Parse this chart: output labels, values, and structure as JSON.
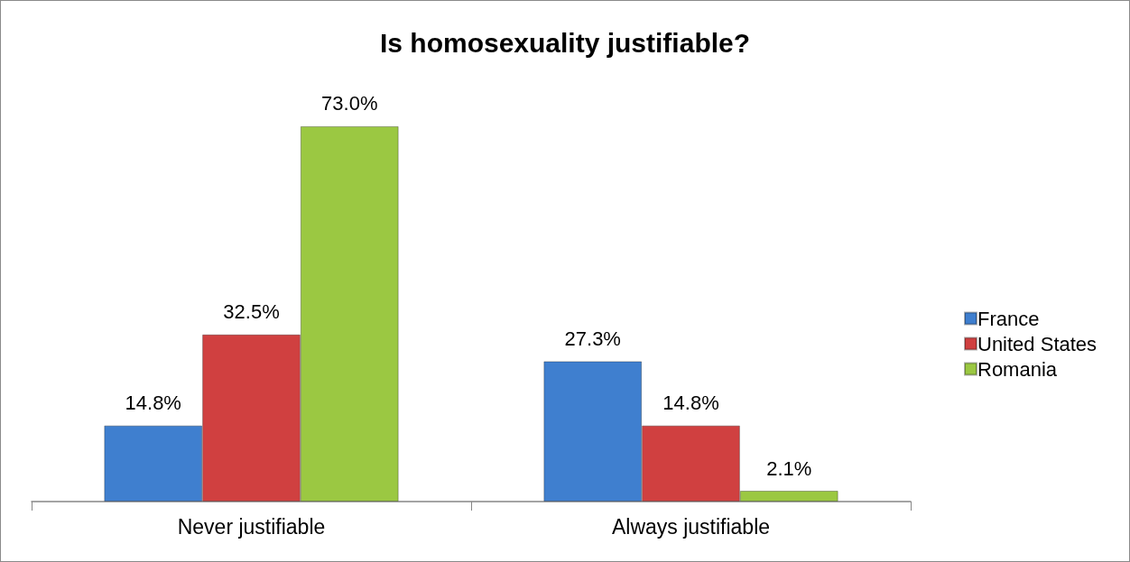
{
  "chart_data": {
    "type": "bar",
    "title": "Is homosexuality justifiable?",
    "categories": [
      "Never justifiable",
      "Always justifiable"
    ],
    "series": [
      {
        "name": "France",
        "color": "#3f7fcf",
        "values": [
          14.8,
          27.3
        ],
        "value_labels": [
          "14.8%",
          "27.3%"
        ]
      },
      {
        "name": "United States",
        "color": "#d04040",
        "values": [
          32.5,
          14.8
        ],
        "value_labels": [
          "32.5%",
          "14.8%"
        ]
      },
      {
        "name": "Romania",
        "color": "#9bc842",
        "values": [
          73.0,
          2.1
        ],
        "value_labels": [
          "73.0%",
          "2.1%"
        ]
      }
    ],
    "tick_labels": "x",
    "legend": "right"
  }
}
